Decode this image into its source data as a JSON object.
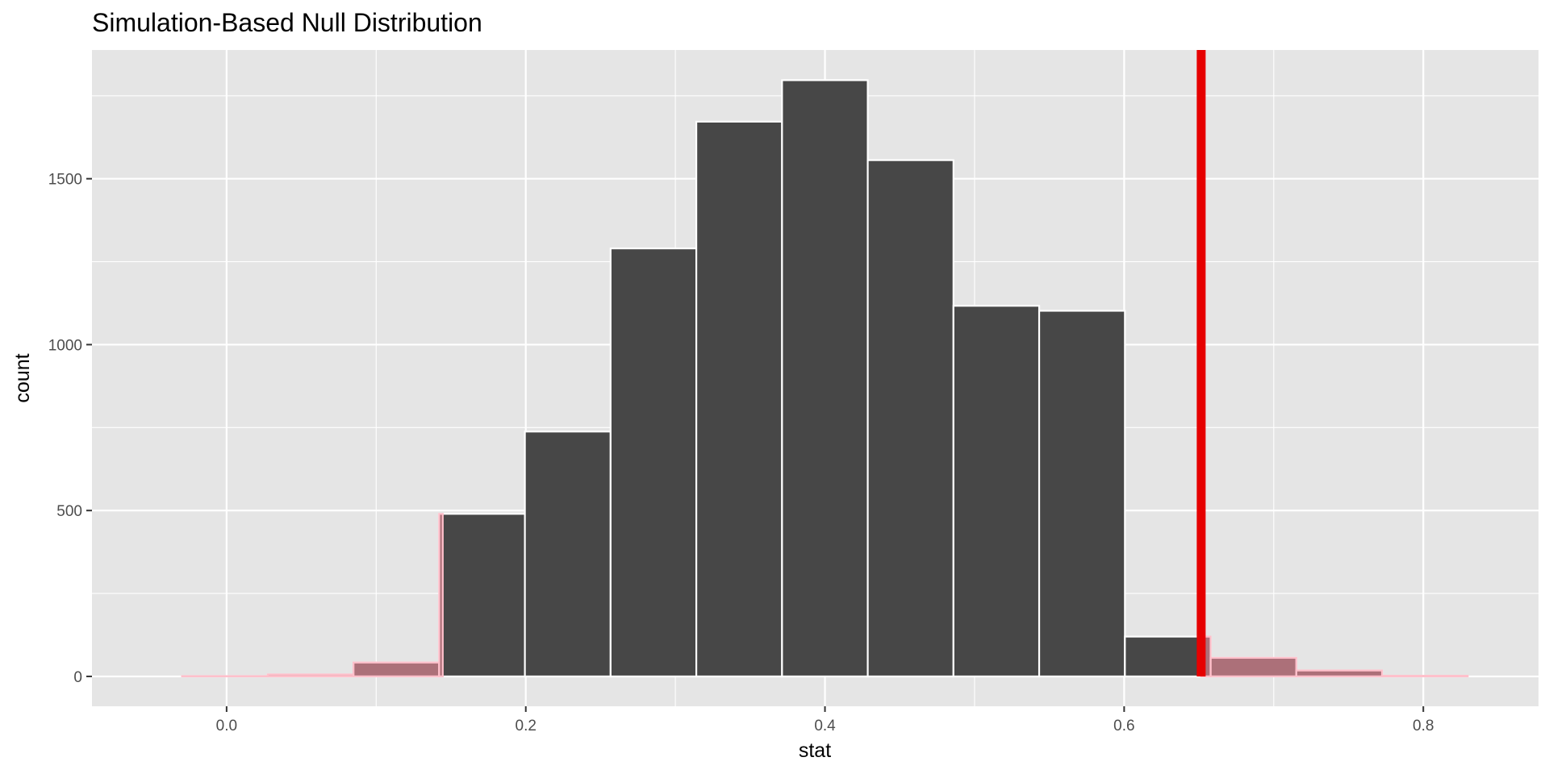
{
  "chart_data": {
    "type": "bar",
    "title": "Simulation-Based Null Distribution",
    "xlabel": "stat",
    "ylabel": "count",
    "xlim": [
      -0.09,
      0.877
    ],
    "ylim": [
      -90,
      1888
    ],
    "x_ticks": [
      0.0,
      0.2,
      0.4,
      0.6,
      0.8
    ],
    "x_tick_labels": [
      "0.0",
      "0.2",
      "0.4",
      "0.6",
      "0.8"
    ],
    "y_ticks": [
      0,
      500,
      1000,
      1500
    ],
    "y_tick_labels": [
      "0",
      "500",
      "1000",
      "1500"
    ],
    "grid": true,
    "bin_width": 0.0573,
    "bins": [
      {
        "x_start": -0.0298,
        "x_end": 0.0275,
        "count": 1
      },
      {
        "x_start": 0.0275,
        "x_end": 0.0848,
        "count": 6
      },
      {
        "x_start": 0.0848,
        "x_end": 0.1421,
        "count": 42
      },
      {
        "x_start": 0.1421,
        "x_end": 0.1994,
        "count": 490
      },
      {
        "x_start": 0.1994,
        "x_end": 0.2567,
        "count": 738
      },
      {
        "x_start": 0.2567,
        "x_end": 0.314,
        "count": 1290
      },
      {
        "x_start": 0.314,
        "x_end": 0.3713,
        "count": 1672
      },
      {
        "x_start": 0.3713,
        "x_end": 0.4286,
        "count": 1797
      },
      {
        "x_start": 0.4286,
        "x_end": 0.4859,
        "count": 1556
      },
      {
        "x_start": 0.4859,
        "x_end": 0.5432,
        "count": 1117
      },
      {
        "x_start": 0.5432,
        "x_end": 0.6005,
        "count": 1102
      },
      {
        "x_start": 0.6005,
        "x_end": 0.6578,
        "count": 120
      },
      {
        "x_start": 0.6578,
        "x_end": 0.7151,
        "count": 56
      },
      {
        "x_start": 0.7151,
        "x_end": 0.7724,
        "count": 18
      },
      {
        "x_start": 0.7724,
        "x_end": 0.8297,
        "count": 2
      }
    ],
    "observed_stat": 0.6515,
    "shade_direction": "both",
    "shade_lower_cut": 0.1445,
    "colors": {
      "panel_bg": "#e5e5e5",
      "grid": "#ffffff",
      "bar_fill": "#474747",
      "bar_outline": "#ffffff",
      "shade_fill": "#f08c9b",
      "shade_outline": "#ffc0cb",
      "obs_line": "#e60000"
    }
  }
}
